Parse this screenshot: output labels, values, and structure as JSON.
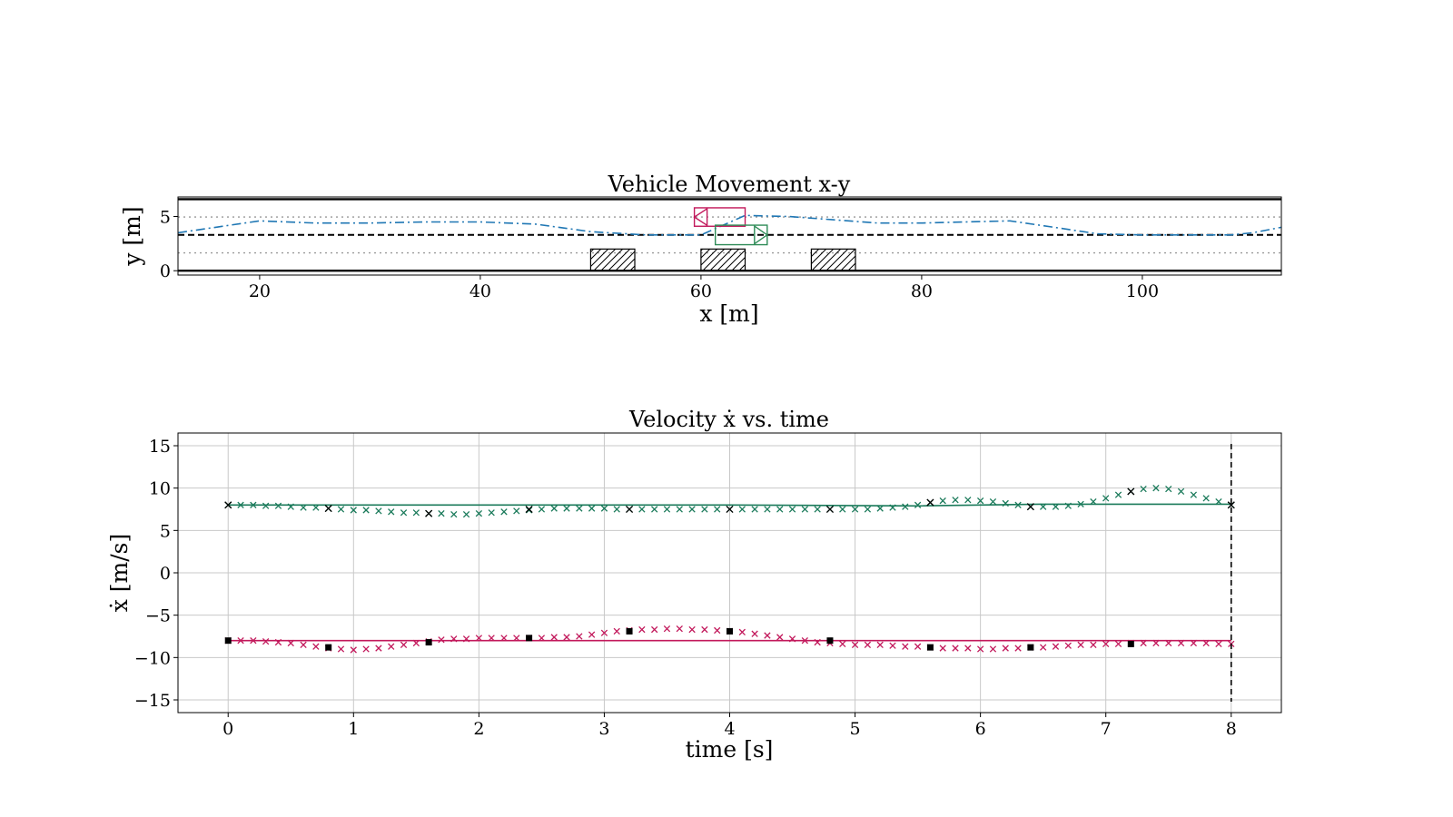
{
  "chart_data": [
    {
      "type": "line",
      "title": "Vehicle Movement x-y",
      "xlabel": "x [m]",
      "ylabel": "y [m]",
      "xlim": [
        12.6,
        112.6
      ],
      "ylim": [
        -0.4,
        6.8
      ],
      "xticks": [
        20,
        40,
        60,
        80,
        100
      ],
      "yticks": [
        0,
        5
      ],
      "grid": false,
      "road": {
        "boundaries_y": [
          0,
          6.6
        ],
        "center_line_y": 3.3,
        "lane_dotted_y": [
          1.65,
          4.95
        ]
      },
      "obstacles": [
        {
          "x0": 50,
          "x1": 54,
          "y0": 0,
          "y1": 2
        },
        {
          "x0": 60,
          "x1": 64,
          "y0": 0,
          "y1": 2
        },
        {
          "x0": 70,
          "x1": 74,
          "y0": 0,
          "y1": 2
        }
      ],
      "vehicles": [
        {
          "color": "#c2185b",
          "x0": 59.4,
          "x1": 64,
          "y0": 4.1,
          "y1": 5.8,
          "heading": "left"
        },
        {
          "color": "#2e8b57",
          "x0": 61.3,
          "x1": 66,
          "y0": 2.4,
          "y1": 4.2,
          "heading": "right"
        }
      ],
      "series": [
        {
          "style": "dash-dot",
          "color": "#1f77b4",
          "x": [
            12.6,
            16,
            20,
            25,
            30,
            35,
            40,
            45,
            50,
            55,
            60,
            62,
            64,
            68,
            72,
            76,
            80,
            84,
            88,
            92,
            96,
            100,
            104,
            108,
            110,
            112.6
          ],
          "y": [
            3.5,
            4.0,
            4.6,
            4.4,
            4.4,
            4.5,
            4.5,
            4.3,
            3.6,
            3.3,
            3.3,
            4.2,
            5.1,
            5.0,
            4.7,
            4.4,
            4.4,
            4.5,
            4.6,
            4.0,
            3.4,
            3.3,
            3.3,
            3.3,
            3.5,
            4.0
          ]
        }
      ]
    },
    {
      "type": "line",
      "title": "Velocity ẋ vs. time",
      "xlabel": "time [s]",
      "ylabel": "ẋ [m/s]",
      "xlim": [
        -0.4,
        8.4
      ],
      "ylim": [
        -16.5,
        16.5
      ],
      "xticks": [
        0,
        1,
        2,
        3,
        4,
        5,
        6,
        7,
        8
      ],
      "yticks": [
        15,
        10,
        5,
        0,
        -5,
        -10,
        -15
      ],
      "grid": true,
      "vline_x": 8,
      "series": [
        {
          "style": "solid",
          "color": "#1a7a5a",
          "x": [
            0,
            4,
            5.5,
            6.5,
            8
          ],
          "y": [
            8.0,
            8.0,
            7.9,
            8.1,
            8.1
          ]
        },
        {
          "style": "x-markers",
          "color": "#1a7a5a",
          "x": [
            0,
            0.1,
            0.2,
            0.3,
            0.4,
            0.5,
            0.6,
            0.7,
            0.8,
            0.9,
            1.0,
            1.1,
            1.2,
            1.3,
            1.4,
            1.5,
            1.6,
            1.7,
            1.8,
            1.9,
            2.0,
            2.1,
            2.2,
            2.3,
            2.4,
            2.5,
            2.6,
            2.7,
            2.8,
            2.9,
            3.0,
            3.1,
            3.2,
            3.3,
            3.4,
            3.5,
            3.6,
            3.7,
            3.8,
            3.9,
            4.0,
            4.1,
            4.2,
            4.3,
            4.4,
            4.5,
            4.6,
            4.7,
            4.8,
            4.9,
            5.0,
            5.1,
            5.2,
            5.3,
            5.4,
            5.5,
            5.6,
            5.7,
            5.8,
            5.9,
            6.0,
            6.1,
            6.2,
            6.3,
            6.4,
            6.5,
            6.6,
            6.7,
            6.8,
            6.9,
            7.0,
            7.1,
            7.2,
            7.3,
            7.4,
            7.5,
            7.6,
            7.7,
            7.8,
            7.9,
            8.0
          ],
          "y": [
            8.0,
            8.0,
            8.0,
            7.9,
            7.9,
            7.8,
            7.7,
            7.7,
            7.6,
            7.5,
            7.4,
            7.4,
            7.3,
            7.2,
            7.1,
            7.1,
            7.0,
            7.0,
            6.9,
            6.9,
            7.0,
            7.1,
            7.2,
            7.3,
            7.4,
            7.5,
            7.6,
            7.6,
            7.6,
            7.6,
            7.6,
            7.5,
            7.5,
            7.5,
            7.5,
            7.5,
            7.5,
            7.5,
            7.5,
            7.5,
            7.5,
            7.5,
            7.5,
            7.5,
            7.5,
            7.5,
            7.5,
            7.5,
            7.5,
            7.5,
            7.5,
            7.5,
            7.6,
            7.7,
            7.8,
            8.0,
            8.3,
            8.5,
            8.6,
            8.6,
            8.5,
            8.4,
            8.2,
            8.0,
            7.8,
            7.8,
            7.8,
            7.9,
            8.1,
            8.4,
            8.8,
            9.2,
            9.6,
            9.9,
            10.0,
            9.9,
            9.6,
            9.2,
            8.8,
            8.4,
            8.0
          ]
        },
        {
          "style": "x-markers",
          "color": "#000000",
          "x": [
            0,
            0.8,
            1.6,
            2.4,
            3.2,
            4.0,
            4.8,
            5.6,
            6.4,
            7.2,
            8.0
          ],
          "y": [
            8.0,
            7.6,
            7.0,
            7.5,
            7.5,
            7.5,
            7.5,
            8.3,
            7.8,
            9.6,
            8.0
          ]
        },
        {
          "style": "solid",
          "color": "#c2185b",
          "x": [
            0,
            8
          ],
          "y": [
            -8.0,
            -8.0
          ]
        },
        {
          "style": "x-markers",
          "color": "#c2185b",
          "x": [
            0,
            0.1,
            0.2,
            0.3,
            0.4,
            0.5,
            0.6,
            0.7,
            0.8,
            0.9,
            1.0,
            1.1,
            1.2,
            1.3,
            1.4,
            1.5,
            1.6,
            1.7,
            1.8,
            1.9,
            2.0,
            2.1,
            2.2,
            2.3,
            2.4,
            2.5,
            2.6,
            2.7,
            2.8,
            2.9,
            3.0,
            3.1,
            3.2,
            3.3,
            3.4,
            3.5,
            3.6,
            3.7,
            3.8,
            3.9,
            4.0,
            4.1,
            4.2,
            4.3,
            4.4,
            4.5,
            4.6,
            4.7,
            4.8,
            4.9,
            5.0,
            5.1,
            5.2,
            5.3,
            5.4,
            5.5,
            5.6,
            5.7,
            5.8,
            5.9,
            6.0,
            6.1,
            6.2,
            6.3,
            6.4,
            6.5,
            6.6,
            6.7,
            6.8,
            6.9,
            7.0,
            7.1,
            7.2,
            7.3,
            7.4,
            7.5,
            7.6,
            7.7,
            7.8,
            7.9,
            8.0
          ],
          "y": [
            -8.0,
            -8.0,
            -8.0,
            -8.1,
            -8.2,
            -8.3,
            -8.5,
            -8.7,
            -8.9,
            -9.0,
            -9.1,
            -9.0,
            -8.9,
            -8.7,
            -8.5,
            -8.3,
            -8.1,
            -7.9,
            -7.8,
            -7.8,
            -7.7,
            -7.7,
            -7.7,
            -7.7,
            -7.7,
            -7.7,
            -7.6,
            -7.6,
            -7.5,
            -7.3,
            -7.1,
            -6.9,
            -6.8,
            -6.7,
            -6.7,
            -6.6,
            -6.6,
            -6.7,
            -6.7,
            -6.8,
            -6.9,
            -7.0,
            -7.2,
            -7.4,
            -7.6,
            -7.8,
            -8.0,
            -8.2,
            -8.3,
            -8.4,
            -8.5,
            -8.5,
            -8.5,
            -8.6,
            -8.7,
            -8.7,
            -8.8,
            -8.9,
            -8.9,
            -8.9,
            -9.0,
            -9.0,
            -8.9,
            -8.9,
            -8.8,
            -8.8,
            -8.7,
            -8.6,
            -8.5,
            -8.5,
            -8.4,
            -8.4,
            -8.3,
            -8.3,
            -8.3,
            -8.3,
            -8.3,
            -8.3,
            -8.3,
            -8.4,
            -8.4
          ]
        },
        {
          "style": "square-markers",
          "color": "#000000",
          "x": [
            0,
            0.8,
            1.6,
            2.4,
            3.2,
            4.0,
            4.8,
            5.6,
            6.4,
            7.2
          ],
          "y": [
            -8.0,
            -8.8,
            -8.2,
            -7.7,
            -6.9,
            -6.9,
            -8.0,
            -8.8,
            -8.8,
            -8.4
          ]
        }
      ]
    }
  ]
}
